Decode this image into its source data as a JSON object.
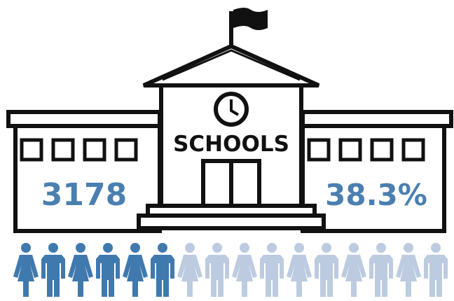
{
  "label": "SCHOOLS",
  "count": "3178",
  "percent": "38.3%"
}
